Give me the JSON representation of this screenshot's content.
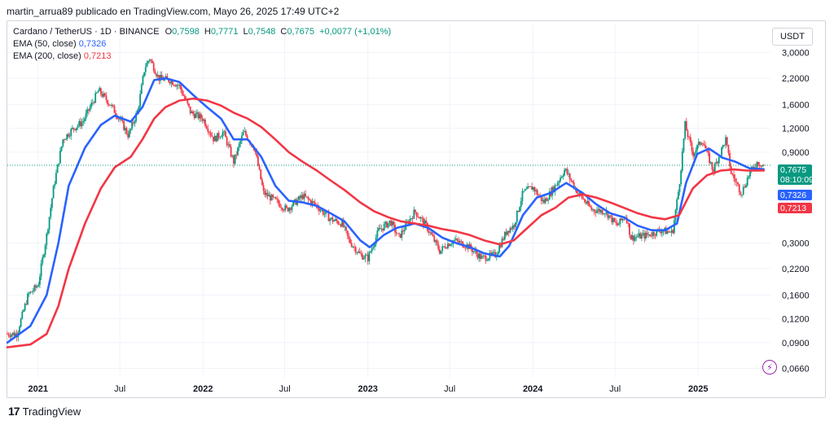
{
  "header": {
    "published_line": "martin_arrua89 publicado en TradingView.com, Mayo 26, 2025 17:49 UTC+2"
  },
  "legend": {
    "symbol_line": {
      "pair": "Cardano / TetherUS · 1D · BINANCE",
      "o_label": "O",
      "o": "0,7598",
      "h_label": "H",
      "h": "0,7771",
      "l_label": "L",
      "l": "0,7548",
      "c_label": "C",
      "c": "0,7675",
      "change": "+0,0077 (+1,01%)"
    },
    "ema50": {
      "label": "EMA (50, close)",
      "value": "0,7326"
    },
    "ema200": {
      "label": "EMA (200, close)",
      "value": "0,7213"
    }
  },
  "currency_label": "USDT",
  "price_tags": {
    "last": "0,7675",
    "countdown": "08:10:09",
    "ema50": "0,7326",
    "ema200": "0,7213"
  },
  "footer": {
    "brand": "TradingView",
    "mark": "17"
  },
  "colors": {
    "up": "#089981",
    "down": "#f23645",
    "ema50": "#2962ff",
    "ema200": "#f23645",
    "last_price": "#089981",
    "grid": "#f0f3fa"
  },
  "chart_data": {
    "type": "line",
    "scale": "log",
    "ylim": [
      0.06,
      3.2
    ],
    "xlim": [
      "2020-10-25",
      "2025-06-10"
    ],
    "y_ticks": [
      {
        "value": 3.0,
        "label": "3,0000"
      },
      {
        "value": 2.2,
        "label": "2,2000"
      },
      {
        "value": 1.6,
        "label": "1,6000"
      },
      {
        "value": 1.2,
        "label": "1,2000"
      },
      {
        "value": 0.9,
        "label": "0,9000"
      },
      {
        "value": 0.3,
        "label": "0,3000"
      },
      {
        "value": 0.22,
        "label": "0,2200"
      },
      {
        "value": 0.16,
        "label": "0,1600"
      },
      {
        "value": 0.12,
        "label": "0,1200"
      },
      {
        "value": 0.09,
        "label": "0,0900"
      },
      {
        "value": 0.066,
        "label": "0,0660"
      }
    ],
    "x_ticks": [
      {
        "date": "2021-01-01",
        "label": "2021",
        "bold": true
      },
      {
        "date": "2021-07-01",
        "label": "Jul",
        "bold": false
      },
      {
        "date": "2022-01-01",
        "label": "2022",
        "bold": true
      },
      {
        "date": "2022-07-01",
        "label": "Jul",
        "bold": false
      },
      {
        "date": "2023-01-01",
        "label": "2023",
        "bold": true
      },
      {
        "date": "2023-07-01",
        "label": "Jul",
        "bold": false
      },
      {
        "date": "2024-01-01",
        "label": "2024",
        "bold": true
      },
      {
        "date": "2024-07-01",
        "label": "Jul",
        "bold": false
      },
      {
        "date": "2025-01-01",
        "label": "2025",
        "bold": true
      }
    ],
    "last_price": 0.7675,
    "series": [
      {
        "name": "Cardano / TetherUS",
        "kind": "price",
        "points": [
          [
            "2020-10-25",
            0.1
          ],
          [
            "2020-11-15",
            0.1
          ],
          [
            "2020-12-10",
            0.16
          ],
          [
            "2021-01-01",
            0.18
          ],
          [
            "2021-01-20",
            0.33
          ],
          [
            "2021-02-05",
            0.6
          ],
          [
            "2021-02-25",
            1.05
          ],
          [
            "2021-03-20",
            1.2
          ],
          [
            "2021-04-10",
            1.3
          ],
          [
            "2021-05-15",
            1.9
          ],
          [
            "2021-06-10",
            1.6
          ],
          [
            "2021-06-30",
            1.35
          ],
          [
            "2021-07-20",
            1.1
          ],
          [
            "2021-08-10",
            1.5
          ],
          [
            "2021-08-25",
            2.5
          ],
          [
            "2021-09-05",
            2.8
          ],
          [
            "2021-09-25",
            2.2
          ],
          [
            "2021-10-20",
            2.15
          ],
          [
            "2021-11-10",
            2.0
          ],
          [
            "2021-12-05",
            1.45
          ],
          [
            "2022-01-01",
            1.35
          ],
          [
            "2022-01-25",
            1.05
          ],
          [
            "2022-02-15",
            1.15
          ],
          [
            "2022-03-10",
            0.8
          ],
          [
            "2022-04-01",
            1.15
          ],
          [
            "2022-04-25",
            0.95
          ],
          [
            "2022-05-15",
            0.55
          ],
          [
            "2022-06-10",
            0.5
          ],
          [
            "2022-07-05",
            0.45
          ],
          [
            "2022-08-10",
            0.53
          ],
          [
            "2022-09-10",
            0.47
          ],
          [
            "2022-10-10",
            0.4
          ],
          [
            "2022-11-05",
            0.38
          ],
          [
            "2022-11-20",
            0.31
          ],
          [
            "2022-12-15",
            0.26
          ],
          [
            "2023-01-01",
            0.25
          ],
          [
            "2023-01-25",
            0.35
          ],
          [
            "2023-02-20",
            0.39
          ],
          [
            "2023-03-10",
            0.32
          ],
          [
            "2023-04-15",
            0.44
          ],
          [
            "2023-05-10",
            0.37
          ],
          [
            "2023-06-10",
            0.27
          ],
          [
            "2023-06-20",
            0.29
          ],
          [
            "2023-07-10",
            0.31
          ],
          [
            "2023-08-10",
            0.29
          ],
          [
            "2023-09-10",
            0.25
          ],
          [
            "2023-10-10",
            0.26
          ],
          [
            "2023-11-05",
            0.35
          ],
          [
            "2023-11-20",
            0.37
          ],
          [
            "2023-12-10",
            0.55
          ],
          [
            "2024-01-01",
            0.59
          ],
          [
            "2024-01-25",
            0.49
          ],
          [
            "2024-02-20",
            0.6
          ],
          [
            "2024-03-12",
            0.73
          ],
          [
            "2024-04-10",
            0.55
          ],
          [
            "2024-05-10",
            0.45
          ],
          [
            "2024-06-10",
            0.44
          ],
          [
            "2024-07-05",
            0.37
          ],
          [
            "2024-07-25",
            0.42
          ],
          [
            "2024-08-05",
            0.32
          ],
          [
            "2024-09-10",
            0.33
          ],
          [
            "2024-10-10",
            0.35
          ],
          [
            "2024-11-05",
            0.34
          ],
          [
            "2024-11-20",
            0.6
          ],
          [
            "2024-12-03",
            1.25
          ],
          [
            "2024-12-20",
            0.88
          ],
          [
            "2025-01-10",
            1.05
          ],
          [
            "2025-02-03",
            0.72
          ],
          [
            "2025-03-03",
            1.05
          ],
          [
            "2025-03-15",
            0.7
          ],
          [
            "2025-04-07",
            0.55
          ],
          [
            "2025-04-25",
            0.7
          ],
          [
            "2025-05-12",
            0.8
          ],
          [
            "2025-05-26",
            0.7675
          ]
        ]
      },
      {
        "name": "EMA (50, close)",
        "kind": "ema50",
        "points": [
          [
            "2020-10-25",
            0.09
          ],
          [
            "2020-12-15",
            0.11
          ],
          [
            "2021-01-20",
            0.16
          ],
          [
            "2021-02-15",
            0.3
          ],
          [
            "2021-03-10",
            0.6
          ],
          [
            "2021-04-15",
            0.95
          ],
          [
            "2021-05-20",
            1.25
          ],
          [
            "2021-06-20",
            1.4
          ],
          [
            "2021-07-25",
            1.3
          ],
          [
            "2021-08-20",
            1.55
          ],
          [
            "2021-09-15",
            2.15
          ],
          [
            "2021-10-10",
            2.2
          ],
          [
            "2021-11-10",
            2.1
          ],
          [
            "2021-12-10",
            1.8
          ],
          [
            "2022-01-10",
            1.55
          ],
          [
            "2022-02-10",
            1.35
          ],
          [
            "2022-03-10",
            1.05
          ],
          [
            "2022-04-10",
            1.05
          ],
          [
            "2022-05-10",
            0.85
          ],
          [
            "2022-06-10",
            0.6
          ],
          [
            "2022-07-10",
            0.5
          ],
          [
            "2022-08-10",
            0.49
          ],
          [
            "2022-09-10",
            0.47
          ],
          [
            "2022-10-10",
            0.43
          ],
          [
            "2022-11-10",
            0.39
          ],
          [
            "2022-12-15",
            0.31
          ],
          [
            "2023-01-05",
            0.285
          ],
          [
            "2023-02-05",
            0.33
          ],
          [
            "2023-03-05",
            0.36
          ],
          [
            "2023-04-15",
            0.38
          ],
          [
            "2023-05-15",
            0.36
          ],
          [
            "2023-06-15",
            0.32
          ],
          [
            "2023-07-15",
            0.3
          ],
          [
            "2023-08-15",
            0.285
          ],
          [
            "2023-09-15",
            0.265
          ],
          [
            "2023-10-20",
            0.255
          ],
          [
            "2023-11-10",
            0.29
          ],
          [
            "2023-12-10",
            0.42
          ],
          [
            "2024-01-10",
            0.52
          ],
          [
            "2024-02-10",
            0.55
          ],
          [
            "2024-03-15",
            0.62
          ],
          [
            "2024-04-20",
            0.55
          ],
          [
            "2024-05-20",
            0.48
          ],
          [
            "2024-06-20",
            0.43
          ],
          [
            "2024-07-20",
            0.41
          ],
          [
            "2024-08-20",
            0.37
          ],
          [
            "2024-09-20",
            0.35
          ],
          [
            "2024-10-20",
            0.35
          ],
          [
            "2024-11-15",
            0.38
          ],
          [
            "2024-12-05",
            0.62
          ],
          [
            "2024-12-30",
            0.88
          ],
          [
            "2025-01-25",
            0.94
          ],
          [
            "2025-02-25",
            0.84
          ],
          [
            "2025-03-25",
            0.8
          ],
          [
            "2025-04-25",
            0.74
          ],
          [
            "2025-05-26",
            0.7326
          ]
        ]
      },
      {
        "name": "EMA (200, close)",
        "kind": "ema200",
        "points": [
          [
            "2020-10-25",
            0.085
          ],
          [
            "2020-12-15",
            0.088
          ],
          [
            "2021-01-20",
            0.1
          ],
          [
            "2021-02-15",
            0.14
          ],
          [
            "2021-03-10",
            0.22
          ],
          [
            "2021-04-15",
            0.38
          ],
          [
            "2021-05-20",
            0.58
          ],
          [
            "2021-06-20",
            0.75
          ],
          [
            "2021-07-25",
            0.85
          ],
          [
            "2021-08-20",
            1.05
          ],
          [
            "2021-09-15",
            1.35
          ],
          [
            "2021-10-10",
            1.55
          ],
          [
            "2021-11-10",
            1.68
          ],
          [
            "2021-12-10",
            1.72
          ],
          [
            "2022-01-10",
            1.68
          ],
          [
            "2022-02-10",
            1.58
          ],
          [
            "2022-03-10",
            1.45
          ],
          [
            "2022-04-10",
            1.35
          ],
          [
            "2022-05-10",
            1.22
          ],
          [
            "2022-06-10",
            1.05
          ],
          [
            "2022-07-10",
            0.9
          ],
          [
            "2022-08-10",
            0.8
          ],
          [
            "2022-09-10",
            0.72
          ],
          [
            "2022-10-10",
            0.64
          ],
          [
            "2022-11-10",
            0.57
          ],
          [
            "2022-12-15",
            0.49
          ],
          [
            "2023-01-15",
            0.44
          ],
          [
            "2023-02-15",
            0.41
          ],
          [
            "2023-03-15",
            0.39
          ],
          [
            "2023-04-15",
            0.38
          ],
          [
            "2023-05-15",
            0.37
          ],
          [
            "2023-06-15",
            0.355
          ],
          [
            "2023-07-15",
            0.345
          ],
          [
            "2023-08-15",
            0.33
          ],
          [
            "2023-09-15",
            0.31
          ],
          [
            "2023-10-20",
            0.295
          ],
          [
            "2023-11-20",
            0.31
          ],
          [
            "2023-12-20",
            0.36
          ],
          [
            "2024-01-20",
            0.42
          ],
          [
            "2024-02-20",
            0.46
          ],
          [
            "2024-03-20",
            0.52
          ],
          [
            "2024-04-20",
            0.54
          ],
          [
            "2024-05-20",
            0.52
          ],
          [
            "2024-06-20",
            0.49
          ],
          [
            "2024-07-20",
            0.46
          ],
          [
            "2024-08-20",
            0.43
          ],
          [
            "2024-09-20",
            0.41
          ],
          [
            "2024-10-20",
            0.4
          ],
          [
            "2024-11-20",
            0.42
          ],
          [
            "2024-12-20",
            0.58
          ],
          [
            "2025-01-20",
            0.68
          ],
          [
            "2025-02-20",
            0.72
          ],
          [
            "2025-03-20",
            0.73
          ],
          [
            "2025-04-20",
            0.72
          ],
          [
            "2025-05-26",
            0.7213
          ]
        ]
      }
    ]
  }
}
